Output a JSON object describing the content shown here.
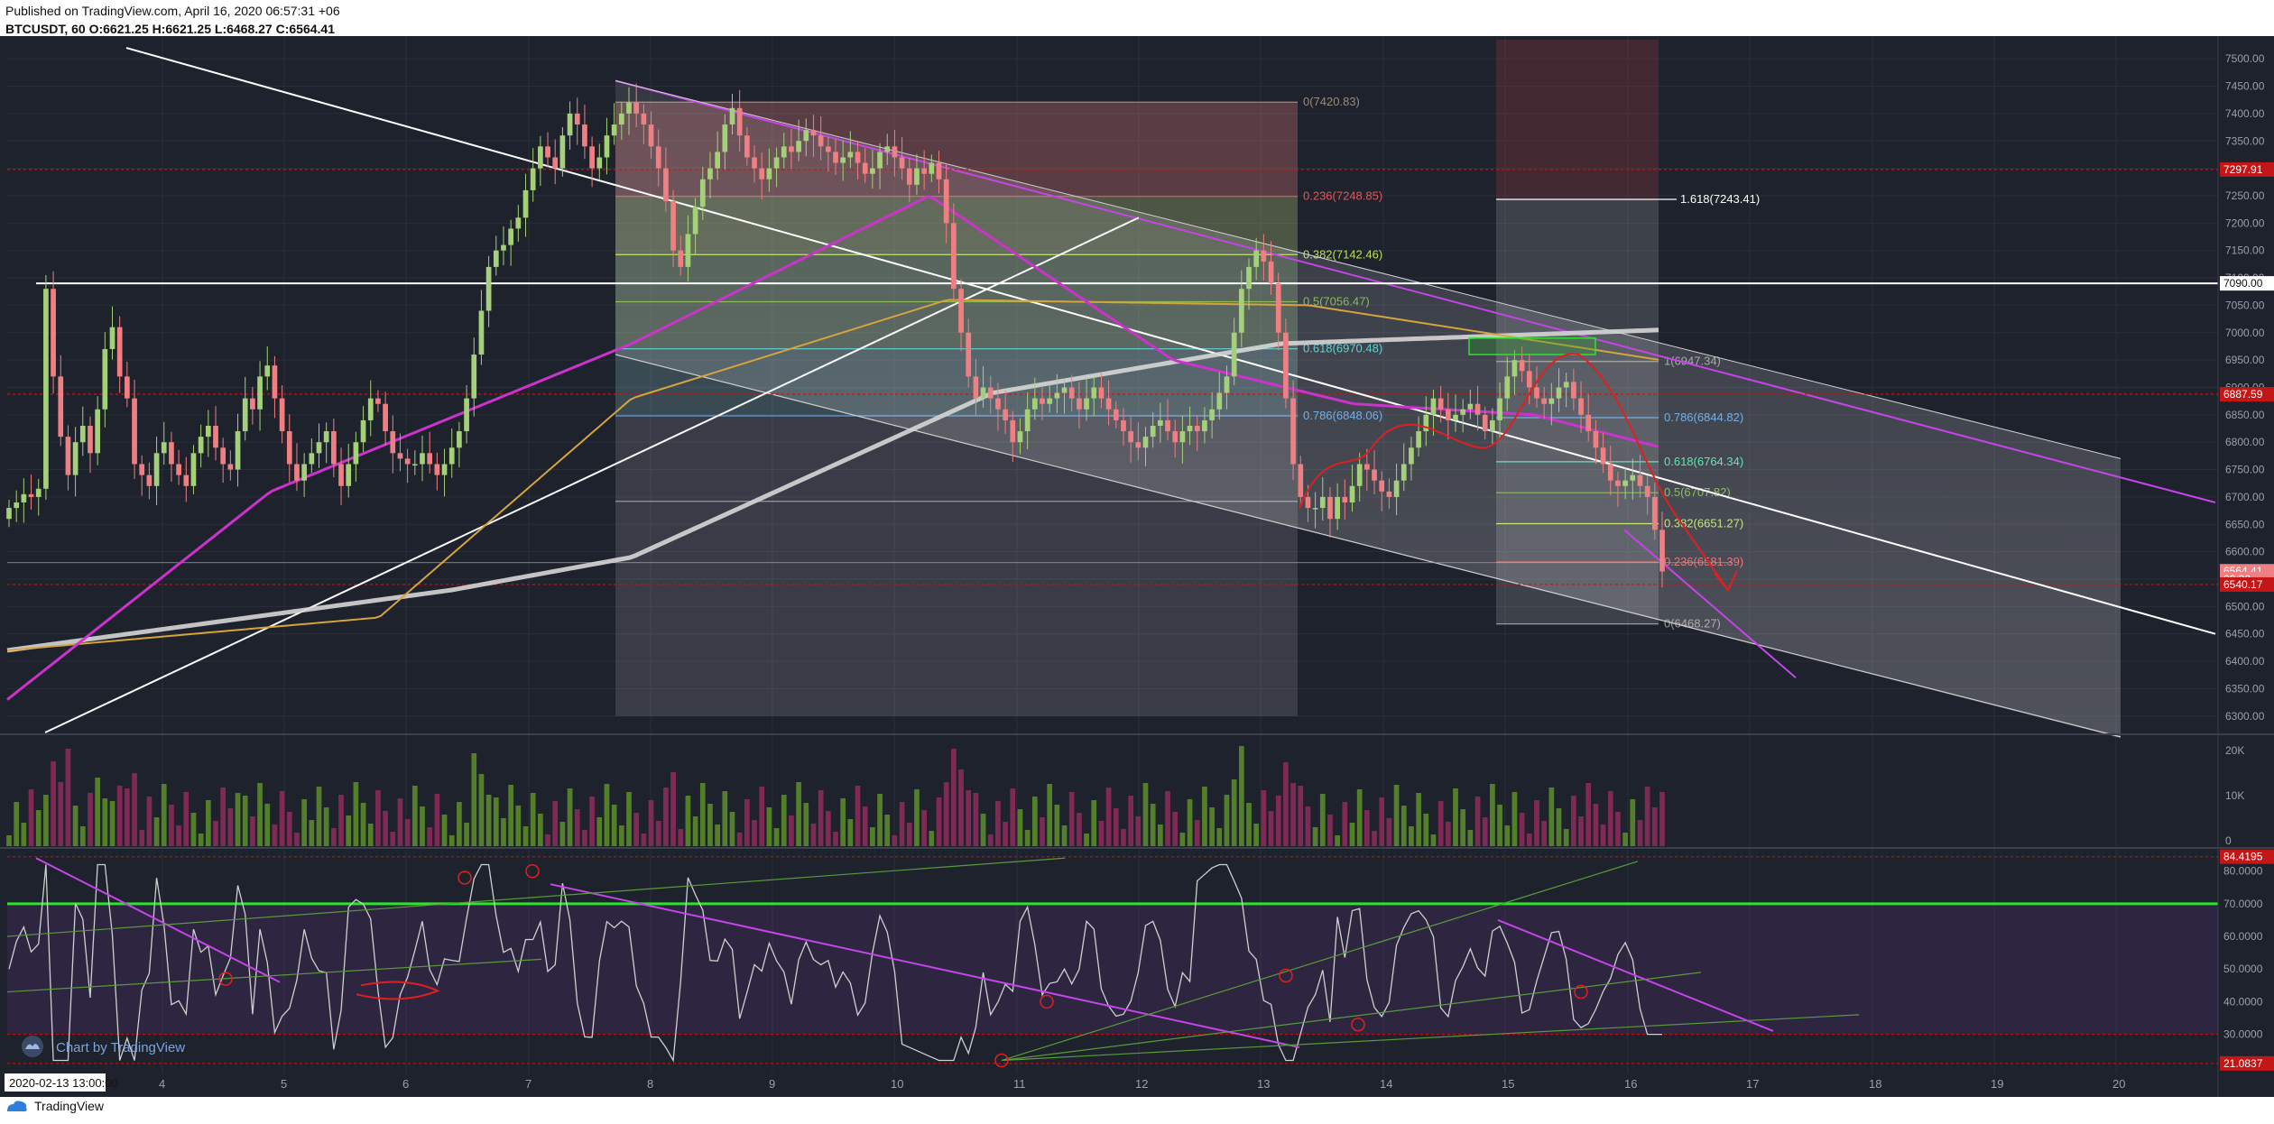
{
  "header": {
    "published": "Published on TradingView.com, April 16, 2020 06:57:31 +06",
    "symbol_line": "BTCUSDT, 60 O:6621.25 H:6621.25 L:6468.27 C:6564.41"
  },
  "footer": {
    "brand": "TradingView"
  },
  "watermark": "Chart by TradingView",
  "colors": {
    "background": "#1e222d",
    "up": "#a5d07a",
    "down": "#ef7f82",
    "trend": "#ffffff",
    "channel": "#c445e8",
    "ma_long": "#d6d6d6",
    "ma_mid": "#d6a43c",
    "ma_fast": "#cc33cc",
    "rsi": "#cfcfcf",
    "rsi_upper": "#2ee32e"
  },
  "date_marker": "2020-02-13 13:00:00",
  "chart_data": [
    {
      "type": "candlestick",
      "title": "",
      "x_ticks": [
        "4",
        "5",
        "6",
        "7",
        "8",
        "9",
        "10",
        "11",
        "12",
        "13",
        "14",
        "15",
        "16",
        "17",
        "18",
        "19",
        "20"
      ],
      "y_ticks": [
        "7500.00",
        "7450.00",
        "7400.00",
        "7350.00",
        "7300.00",
        "7250.00",
        "7200.00",
        "7150.00",
        "7100.00",
        "7050.00",
        "7000.00",
        "6950.00",
        "6900.00",
        "6850.00",
        "6800.00",
        "6750.00",
        "6700.00",
        "6650.00",
        "6600.00",
        "6550.00",
        "6500.00",
        "6450.00",
        "6400.00",
        "6350.00",
        "6300.00"
      ],
      "ylim": [
        6270,
        7525
      ],
      "grid": true,
      "price_labels": [
        {
          "value": 7297.91,
          "text": "7297.91",
          "color": "#c41616"
        },
        {
          "value": 7090.0,
          "text": "7090.00",
          "color": "#ffffff"
        },
        {
          "value": 6887.59,
          "text": "6887.59",
          "color": "#c41616"
        },
        {
          "value": 6564.41,
          "text": "6564.41",
          "color": "#ef7f82"
        },
        {
          "value": 6550.0,
          "text": "02:32",
          "color": "#ef7f82"
        },
        {
          "value": 6540.17,
          "text": "6540.17",
          "color": "#c41616"
        }
      ],
      "fib_1": [
        {
          "level": "0",
          "value": 7420.83,
          "text": "0(7420.83)",
          "color": "#9a8a7a"
        },
        {
          "level": "0.236",
          "value": 7248.85,
          "text": "0.236(7248.85)",
          "color": "#e05858"
        },
        {
          "level": "0.382",
          "value": 7142.46,
          "text": "0.382(7142.46)",
          "color": "#b9e05a"
        },
        {
          "level": "0.5",
          "value": 7056.47,
          "text": "0.5(7056.47)",
          "color": "#78b040"
        },
        {
          "level": "0.618",
          "value": 6970.48,
          "text": "0.618(6970.48)",
          "color": "#47c9c9"
        },
        {
          "level": "0.786",
          "value": 6848.06,
          "text": "0.786(6848.06)",
          "color": "#5aa0e0"
        },
        {
          "level": "1",
          "value": 6692.0,
          "text": "",
          "color": "#9a9a9a"
        }
      ],
      "fib_2": [
        {
          "level": "1.618",
          "value": 7243.41,
          "text": "1.618(7243.41)",
          "color": "#ffffff"
        },
        {
          "level": "1",
          "value": 6947.34,
          "text": "1(6947.34)",
          "color": "#9a9a9a"
        },
        {
          "level": "0.786",
          "value": 6844.82,
          "text": "0.786(6844.82)",
          "color": "#5aa0e0"
        },
        {
          "level": "0.618",
          "value": 6764.34,
          "text": "0.618(6764.34)",
          "color": "#47e0a0"
        },
        {
          "level": "0.5",
          "value": 6707.82,
          "text": "0.5(6707.82)",
          "color": "#78b040"
        },
        {
          "level": "0.382",
          "value": 6651.27,
          "text": "0.382(6651.27)",
          "color": "#b9e05a"
        },
        {
          "level": "0.236",
          "value": 6581.39,
          "text": "0.236(6581.39)",
          "color": "#e05858"
        },
        {
          "level": "0",
          "value": 6468.27,
          "text": "0(6468.27)",
          "color": "#9a9a9a"
        }
      ],
      "candles_close": [
        6680,
        6690,
        6705,
        6700,
        6715,
        7080,
        6920,
        6810,
        6740,
        6800,
        6830,
        6780,
        6860,
        6970,
        7010,
        6920,
        6880,
        6760,
        6740,
        6720,
        6780,
        6800,
        6760,
        6740,
        6720,
        6780,
        6810,
        6830,
        6790,
        6760,
        6750,
        6820,
        6880,
        6860,
        6920,
        6940,
        6880,
        6820,
        6760,
        6730,
        6760,
        6780,
        6800,
        6820,
        6760,
        6720,
        6760,
        6800,
        6840,
        6880,
        6870,
        6820,
        6780,
        6770,
        6760,
        6760,
        6780,
        6760,
        6740,
        6760,
        6790,
        6820,
        6880,
        6960,
        7040,
        7120,
        7150,
        7160,
        7190,
        7210,
        7260,
        7300,
        7340,
        7320,
        7300,
        7360,
        7400,
        7380,
        7340,
        7300,
        7320,
        7360,
        7380,
        7400,
        7420,
        7400,
        7380,
        7340,
        7300,
        7240,
        7150,
        7120,
        7180,
        7230,
        7280,
        7300,
        7330,
        7380,
        7410,
        7360,
        7320,
        7300,
        7280,
        7300,
        7320,
        7340,
        7330,
        7350,
        7370,
        7360,
        7340,
        7330,
        7310,
        7320,
        7330,
        7310,
        7290,
        7300,
        7330,
        7340,
        7320,
        7300,
        7270,
        7300,
        7290,
        7310,
        7280,
        7200,
        7080,
        7000,
        6920,
        6880,
        6900,
        6880,
        6860,
        6840,
        6800,
        6820,
        6860,
        6880,
        6870,
        6880,
        6890,
        6900,
        6880,
        6860,
        6880,
        6900,
        6880,
        6860,
        6840,
        6820,
        6800,
        6790,
        6810,
        6830,
        6840,
        6820,
        6800,
        6820,
        6830,
        6820,
        6840,
        6860,
        6890,
        6920,
        7000,
        7080,
        7120,
        7150,
        7130,
        7090,
        7000,
        6880,
        6760,
        6700,
        6680,
        6680,
        6700,
        6660,
        6700,
        6690,
        6720,
        6760,
        6750,
        6730,
        6710,
        6700,
        6730,
        6760,
        6790,
        6820,
        6850,
        6880,
        6860,
        6840,
        6850,
        6860,
        6870,
        6850,
        6820,
        6840,
        6880,
        6920,
        6950,
        6930,
        6900,
        6880,
        6870,
        6880,
        6900,
        6910,
        6880,
        6850,
        6820,
        6790,
        6760,
        6730,
        6720,
        6730,
        6740,
        6720,
        6700,
        6640,
        6564
      ],
      "volume_ticks": [
        "20K",
        "10K",
        "0"
      ],
      "rsi": {
        "ticks": [
          "84.4195",
          "80.0000",
          "70.0000",
          "60.0000",
          "50.0000",
          "40.0000",
          "30.0000",
          "21.0837"
        ],
        "ylim": [
          18,
          86
        ],
        "upper": 70,
        "lower": 30,
        "marker_high": 84.4195,
        "marker_low": 21.0837
      }
    }
  ]
}
